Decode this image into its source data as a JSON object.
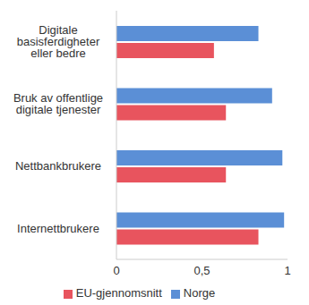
{
  "chart_data": {
    "type": "bar",
    "orientation": "horizontal",
    "categories": [
      "Digitale basisferdigheter eller bedre",
      "Bruk av offentlige digitale tjenester",
      "Nettbankbrukere",
      "Internettbrukere"
    ],
    "series": [
      {
        "name": "Norge",
        "color": "#5b8fd6",
        "values": [
          0.83,
          0.91,
          0.97,
          0.98
        ]
      },
      {
        "name": "EU-gjennomsnitt",
        "color": "#e8545e",
        "values": [
          0.57,
          0.64,
          0.64,
          0.83
        ]
      }
    ],
    "xlim": [
      0,
      1
    ],
    "xticks": [
      0,
      {
        "value": 0.5,
        "label": "0,5"
      },
      1
    ],
    "grid": false,
    "legend": "bottom"
  }
}
